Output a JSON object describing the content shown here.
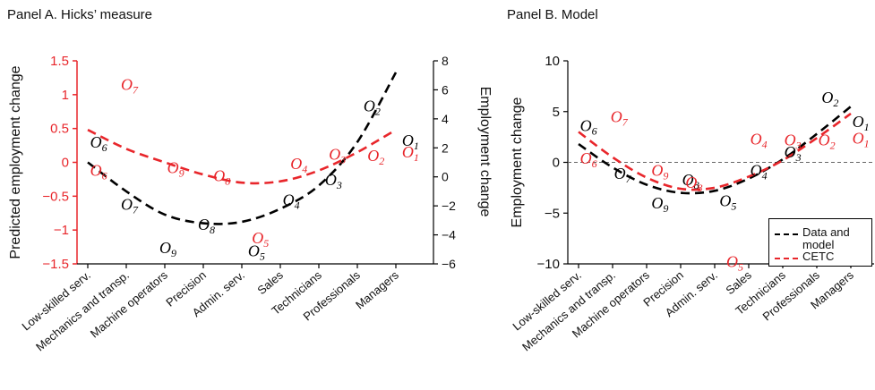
{
  "chart_data": [
    {
      "type": "line",
      "title": "Panel A. Hicks’ measure",
      "categories": [
        "Low-skilled serv.",
        "Mechanics and transp.",
        "Machine operators",
        "Precision",
        "Admin. serv.",
        "Sales",
        "Technicians",
        "Professionals",
        "Managers"
      ],
      "ylabel_left": "Predicted employment change",
      "ylabel_right": "Employment change",
      "ylim_left": [
        -1.5,
        1.5
      ],
      "ylim_right": [
        -6,
        8
      ],
      "yticks_left": [
        "1.5",
        "1",
        "0.5",
        "0",
        "−0.5",
        "−1",
        "−1.5"
      ],
      "yticks_left_values": [
        1.5,
        1,
        0.5,
        0,
        -0.5,
        -1,
        -1.5
      ],
      "yticks_right": [
        "8",
        "6",
        "4",
        "2",
        "0",
        "−2",
        "−4",
        "−6"
      ],
      "yticks_right_values": [
        8,
        6,
        4,
        2,
        0,
        -2,
        -4,
        -6
      ],
      "left_axis_color": "#e8262b",
      "series": [
        {
          "color": "#e8262b",
          "axis": "left",
          "style": "dashed",
          "x": [
            0,
            1,
            2,
            3,
            4,
            5,
            6,
            7,
            8
          ],
          "values": [
            0.48,
            0.2,
            0.0,
            -0.18,
            -0.3,
            -0.28,
            -0.12,
            0.15,
            0.48
          ]
        },
        {
          "color": "#000000",
          "axis": "right",
          "style": "dashed",
          "x": [
            0,
            1,
            2,
            3,
            4,
            5,
            6,
            7,
            8
          ],
          "values": [
            1.0,
            -1.0,
            -2.6,
            -3.2,
            -3.1,
            -2.2,
            -0.6,
            2.4,
            7.2
          ]
        }
      ],
      "point_labels": [
        {
          "text": "O",
          "sub": "6",
          "color": "#000000",
          "axis": "right",
          "x": 0.2,
          "y": 2.4
        },
        {
          "text": "O",
          "sub": "7",
          "color": "#000000",
          "axis": "right",
          "x": 1.0,
          "y": -1.9
        },
        {
          "text": "O",
          "sub": "9",
          "color": "#000000",
          "axis": "right",
          "x": 2.0,
          "y": -4.9
        },
        {
          "text": "O",
          "sub": "8",
          "color": "#000000",
          "axis": "right",
          "x": 3.0,
          "y": -3.3
        },
        {
          "text": "O",
          "sub": "5",
          "color": "#000000",
          "axis": "right",
          "x": 4.3,
          "y": -5.1
        },
        {
          "text": "O",
          "sub": "4",
          "color": "#000000",
          "axis": "right",
          "x": 5.2,
          "y": -1.6
        },
        {
          "text": "O",
          "sub": "3",
          "color": "#000000",
          "axis": "right",
          "x": 6.3,
          "y": -0.2
        },
        {
          "text": "O",
          "sub": "2",
          "color": "#000000",
          "axis": "right",
          "x": 7.3,
          "y": 4.9
        },
        {
          "text": "O",
          "sub": "1",
          "color": "#000000",
          "axis": "right",
          "x": 8.3,
          "y": 2.5
        },
        {
          "text": "O",
          "sub": "7",
          "color": "#e8262b",
          "axis": "left",
          "x": 1.0,
          "y": 1.15
        },
        {
          "text": "O",
          "sub": "6",
          "color": "#e8262b",
          "axis": "left",
          "x": 0.2,
          "y": -0.12
        },
        {
          "text": "O",
          "sub": "9",
          "color": "#e8262b",
          "axis": "left",
          "x": 2.2,
          "y": -0.08
        },
        {
          "text": "O",
          "sub": "8",
          "color": "#e8262b",
          "axis": "left",
          "x": 3.4,
          "y": -0.2
        },
        {
          "text": "O",
          "sub": "5",
          "color": "#e8262b",
          "axis": "left",
          "x": 4.4,
          "y": -1.12
        },
        {
          "text": "O",
          "sub": "4",
          "color": "#e8262b",
          "axis": "left",
          "x": 5.4,
          "y": -0.02
        },
        {
          "text": "O",
          "sub": "3",
          "color": "#e8262b",
          "axis": "left",
          "x": 6.4,
          "y": 0.12
        },
        {
          "text": "O",
          "sub": "2",
          "color": "#e8262b",
          "axis": "left",
          "x": 7.4,
          "y": 0.1
        },
        {
          "text": "O",
          "sub": "1",
          "color": "#e8262b",
          "axis": "left",
          "x": 8.3,
          "y": 0.15
        }
      ]
    },
    {
      "type": "line",
      "title": "Panel B. Model",
      "categories": [
        "Low-skilled serv.",
        "Mechanics and transp.",
        "Machine operators",
        "Precision",
        "Admin. serv.",
        "Sales",
        "Technicians",
        "Professionals",
        "Managers"
      ],
      "ylabel": "Employment change",
      "ylim": [
        -10,
        10
      ],
      "yticks": [
        "10",
        "5",
        "0",
        "−5",
        "−10"
      ],
      "yticks_values": [
        10,
        5,
        0,
        -5,
        -10
      ],
      "zero_line": "dashed gray",
      "series": [
        {
          "color": "#000000",
          "style": "dashed",
          "x": [
            0,
            1,
            2,
            3,
            4,
            5,
            6,
            7,
            8
          ],
          "values": [
            1.8,
            -0.5,
            -2.2,
            -3.0,
            -2.8,
            -1.6,
            0.3,
            2.8,
            5.5
          ]
        },
        {
          "color": "#e8262b",
          "style": "dashed",
          "x": [
            0,
            1,
            2,
            3,
            4,
            5,
            6,
            7,
            8
          ],
          "values": [
            3.0,
            0.5,
            -1.5,
            -2.6,
            -2.5,
            -1.4,
            0.2,
            2.4,
            4.8
          ]
        }
      ],
      "point_labels": [
        {
          "text": "O",
          "sub": "6",
          "color": "#000000",
          "x": 0.2,
          "y": 3.6
        },
        {
          "text": "O",
          "sub": "7",
          "color": "#000000",
          "x": 1.2,
          "y": -1.1
        },
        {
          "text": "O",
          "sub": "9",
          "color": "#000000",
          "x": 2.3,
          "y": -4.0
        },
        {
          "text": "O",
          "sub": "8",
          "color": "#000000",
          "x": 3.2,
          "y": -1.7
        },
        {
          "text": "O",
          "sub": "5",
          "color": "#000000",
          "x": 4.3,
          "y": -3.8
        },
        {
          "text": "O",
          "sub": "4",
          "color": "#000000",
          "x": 5.2,
          "y": -0.8
        },
        {
          "text": "O",
          "sub": "3",
          "color": "#000000",
          "x": 6.2,
          "y": 1.0
        },
        {
          "text": "O",
          "sub": "2",
          "color": "#000000",
          "x": 7.3,
          "y": 6.4
        },
        {
          "text": "O",
          "sub": "1",
          "color": "#000000",
          "x": 8.2,
          "y": 4.0
        },
        {
          "text": "O",
          "sub": "7",
          "color": "#e8262b",
          "x": 1.1,
          "y": 4.5
        },
        {
          "text": "O",
          "sub": "6",
          "color": "#e8262b",
          "x": 0.2,
          "y": 0.4
        },
        {
          "text": "O",
          "sub": "9",
          "color": "#e8262b",
          "x": 2.3,
          "y": -0.8
        },
        {
          "text": "O",
          "sub": "8",
          "color": "#e8262b",
          "x": 3.3,
          "y": -2.0
        },
        {
          "text": "O",
          "sub": "5",
          "color": "#e8262b",
          "x": 4.5,
          "y": -9.8
        },
        {
          "text": "O",
          "sub": "4",
          "color": "#e8262b",
          "x": 5.2,
          "y": 2.3
        },
        {
          "text": "O",
          "sub": "3",
          "color": "#e8262b",
          "x": 6.2,
          "y": 2.2
        },
        {
          "text": "O",
          "sub": "2",
          "color": "#e8262b",
          "x": 7.2,
          "y": 2.2
        },
        {
          "text": "O",
          "sub": "1",
          "color": "#e8262b",
          "x": 8.2,
          "y": 2.4
        }
      ],
      "legend": {
        "position": "bottom-right",
        "entries": [
          {
            "label": "Data and model",
            "color": "#000000",
            "style": "dashed"
          },
          {
            "label": "CETC",
            "color": "#e8262b",
            "style": "dashed"
          }
        ]
      }
    }
  ]
}
